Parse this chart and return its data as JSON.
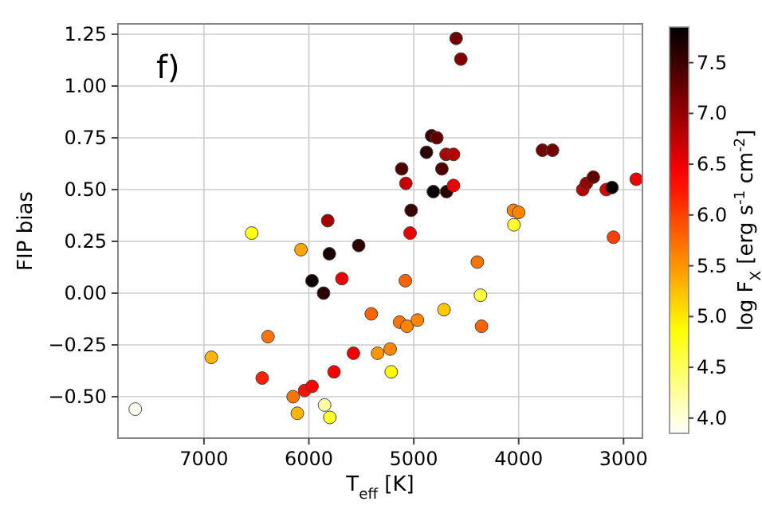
{
  "chart_data": {
    "type": "scatter",
    "xlabel": "T$_{eff}$ [K]",
    "ylabel": "FIP bias",
    "clabel": "log F$_{X}$ [erg s$^{-1}$ cm$^{-2}$]",
    "annotations": [
      "f)"
    ],
    "x": [
      7655,
      6930,
      6545,
      6390,
      6445,
      6075,
      6150,
      6110,
      6040,
      5970,
      5970,
      5860,
      5850,
      5800,
      5820,
      5805,
      5760,
      5685,
      5525,
      5575,
      5405,
      5345,
      5225,
      5215,
      5135,
      5115,
      5075,
      5080,
      5065,
      5035,
      5025,
      4965,
      4879,
      4830,
      4780,
      4732,
      4813,
      4687,
      4692,
      4621,
      4621,
      4712,
      4596,
      4551,
      4394,
      4364,
      4354,
      4045,
      4050,
      4000,
      3773,
      3677,
      3389,
      3354,
      3288,
      3165,
      3110,
      3096,
      2879
    ],
    "values": [
      -0.56,
      -0.31,
      0.29,
      -0.21,
      -0.41,
      0.21,
      -0.5,
      -0.58,
      -0.47,
      -0.45,
      0.06,
      0.0,
      -0.54,
      -0.6,
      0.35,
      0.19,
      -0.38,
      0.07,
      0.23,
      -0.29,
      -0.1,
      -0.29,
      -0.27,
      -0.38,
      -0.14,
      0.6,
      0.53,
      0.06,
      -0.16,
      0.29,
      0.4,
      -0.13,
      0.68,
      0.76,
      0.75,
      0.6,
      0.49,
      0.49,
      0.67,
      0.67,
      0.52,
      -0.08,
      1.23,
      1.13,
      0.15,
      -0.01,
      -0.16,
      0.33,
      0.4,
      0.39,
      0.69,
      0.69,
      0.5,
      0.53,
      0.56,
      0.5,
      0.51,
      0.27,
      0.55
    ],
    "cvalues": [
      3.9,
      5.3,
      4.8,
      5.7,
      6.2,
      5.4,
      5.7,
      5.3,
      6.3,
      6.4,
      7.8,
      7.6,
      4.2,
      4.7,
      6.9,
      7.7,
      6.4,
      6.5,
      7.6,
      6.5,
      5.8,
      5.5,
      5.6,
      4.9,
      5.7,
      7.4,
      6.7,
      5.8,
      5.6,
      6.5,
      7.5,
      5.6,
      7.6,
      7.5,
      7.3,
      7.4,
      7.8,
      7.6,
      6.9,
      6.8,
      6.5,
      5.2,
      7.2,
      7.1,
      5.7,
      4.6,
      5.8,
      4.7,
      5.6,
      5.6,
      7.2,
      7.2,
      6.8,
      7.0,
      7.3,
      6.6,
      7.8,
      6.0,
      6.5
    ],
    "xlim": [
      7820,
      2820
    ],
    "xticks": [
      7000,
      6000,
      5000,
      4000,
      3000
    ],
    "ylim": [
      -0.7,
      1.3
    ],
    "yticks": [
      {
        "value": -0.5,
        "label": "−0.50"
      },
      {
        "value": -0.25,
        "label": "−0.25"
      },
      {
        "value": 0,
        "label": "0.00"
      },
      {
        "value": 0.25,
        "label": "0.25"
      },
      {
        "value": 0.5,
        "label": "0.50"
      },
      {
        "value": 0.75,
        "label": "0.75"
      },
      {
        "value": 1,
        "label": "1.00"
      },
      {
        "value": 1.25,
        "label": "1.25"
      }
    ],
    "clim": [
      3.85,
      7.85
    ],
    "cticks": [
      {
        "value": 4,
        "label": "4.0"
      },
      {
        "value": 4.5,
        "label": "4.5"
      },
      {
        "value": 5,
        "label": "5.0"
      },
      {
        "value": 5.5,
        "label": "5.5"
      },
      {
        "value": 6,
        "label": "6.0"
      },
      {
        "value": 6.5,
        "label": "6.5"
      },
      {
        "value": 7,
        "label": "7.0"
      },
      {
        "value": 7.5,
        "label": "7.5"
      }
    ],
    "grid": true,
    "marker": "circle"
  }
}
